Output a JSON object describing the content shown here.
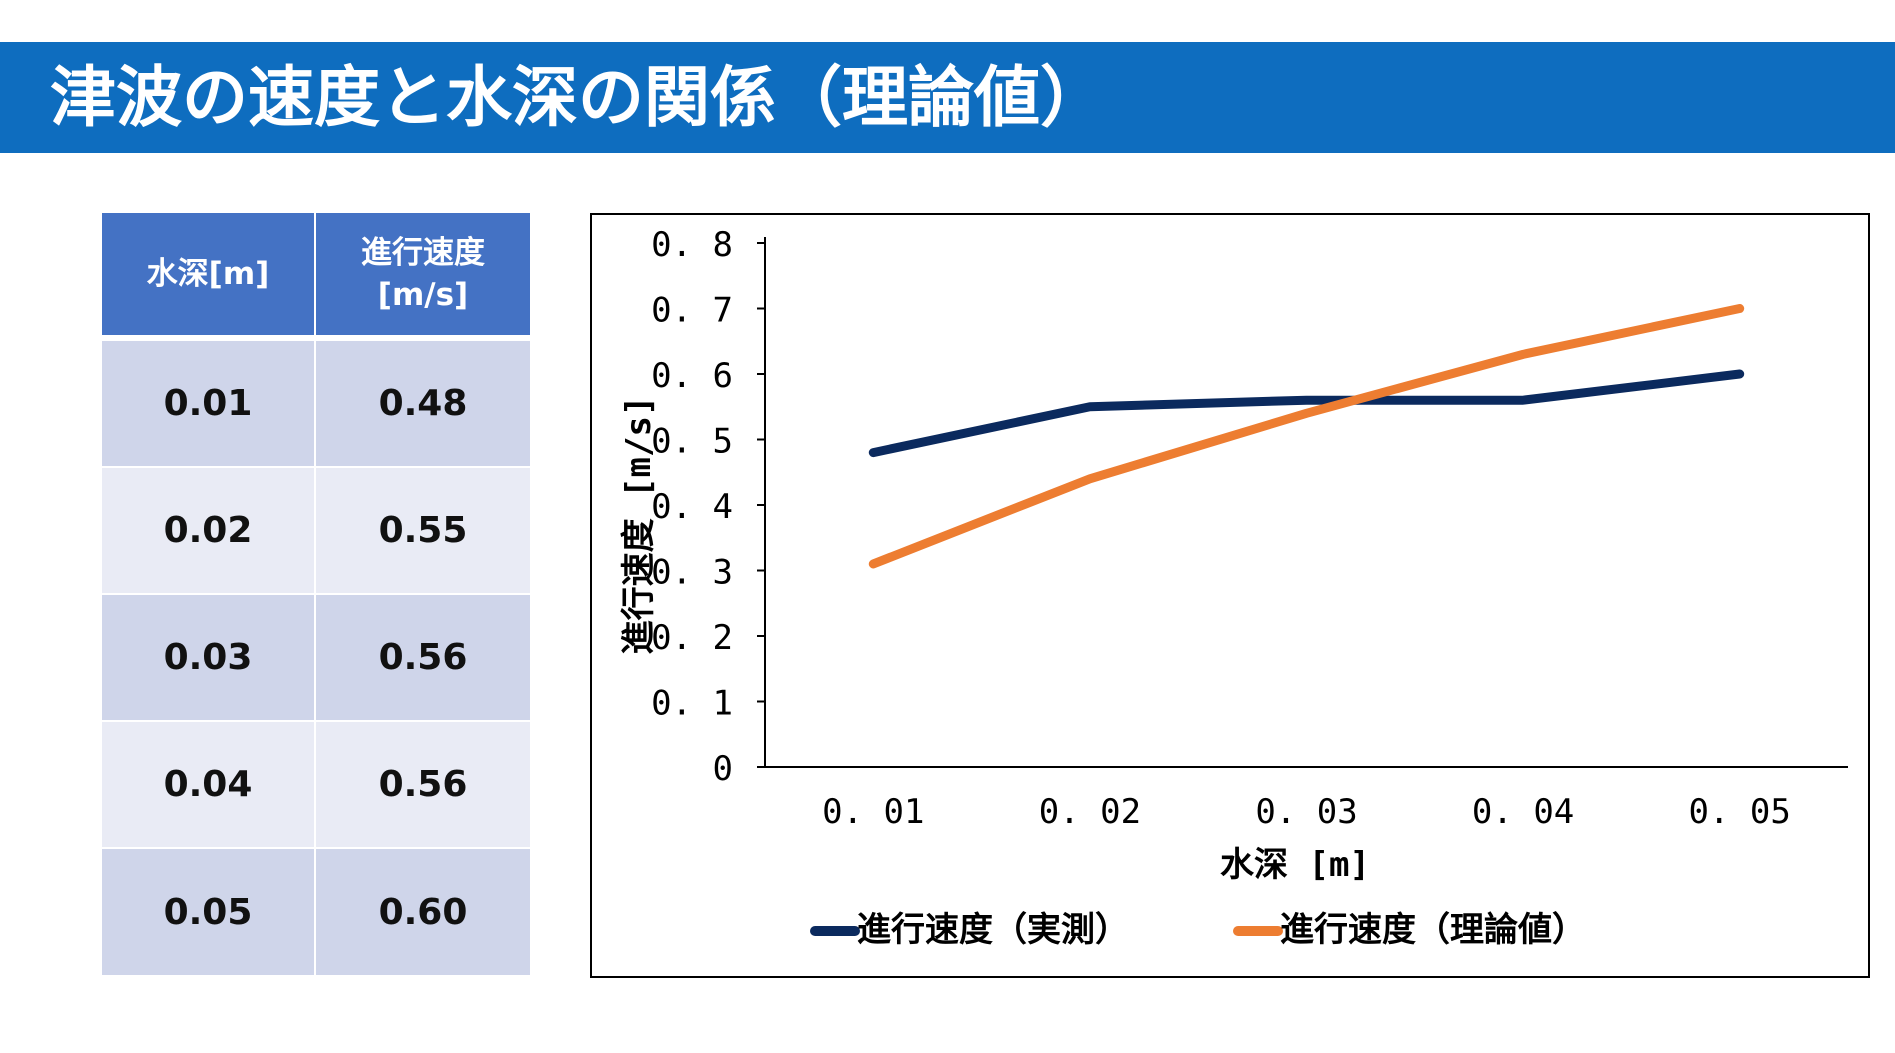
{
  "title": "津波の速度と水深の関係（理論値）",
  "table": {
    "headers": [
      "水深[m]",
      "進行速度\n[m/s]"
    ],
    "rows": [
      [
        "0.01",
        "0.48"
      ],
      [
        "0.02",
        "0.55"
      ],
      [
        "0.03",
        "0.56"
      ],
      [
        "0.04",
        "0.56"
      ],
      [
        "0.05",
        "0.60"
      ]
    ]
  },
  "colors": {
    "title_bar": "#0E6DBF",
    "table_header": "#4472C4",
    "table_row_dark": "#CFD5EA",
    "table_row_light": "#E9EBF5",
    "series_measured": "#0B2A5E",
    "series_theoretical": "#ED7D31"
  },
  "chart_data": {
    "type": "line",
    "title": "",
    "xlabel": "水深 [m]",
    "ylabel": "進行速度 [m/s]",
    "categories": [
      "0.01",
      "0.02",
      "0.03",
      "0.04",
      "0.05"
    ],
    "yticks": [
      "0",
      "0.1",
      "0.2",
      "0.3",
      "0.4",
      "0.5",
      "0.6",
      "0.7",
      "0.8"
    ],
    "ylim": [
      0,
      0.8
    ],
    "grid": false,
    "legend_position": "bottom",
    "series": [
      {
        "name": "進行速度（実測）",
        "values": [
          0.48,
          0.55,
          0.56,
          0.56,
          0.6
        ],
        "color": "#0B2A5E"
      },
      {
        "name": "進行速度（理論値）",
        "values": [
          0.31,
          0.44,
          0.54,
          0.63,
          0.7
        ],
        "color": "#ED7D31"
      }
    ]
  }
}
